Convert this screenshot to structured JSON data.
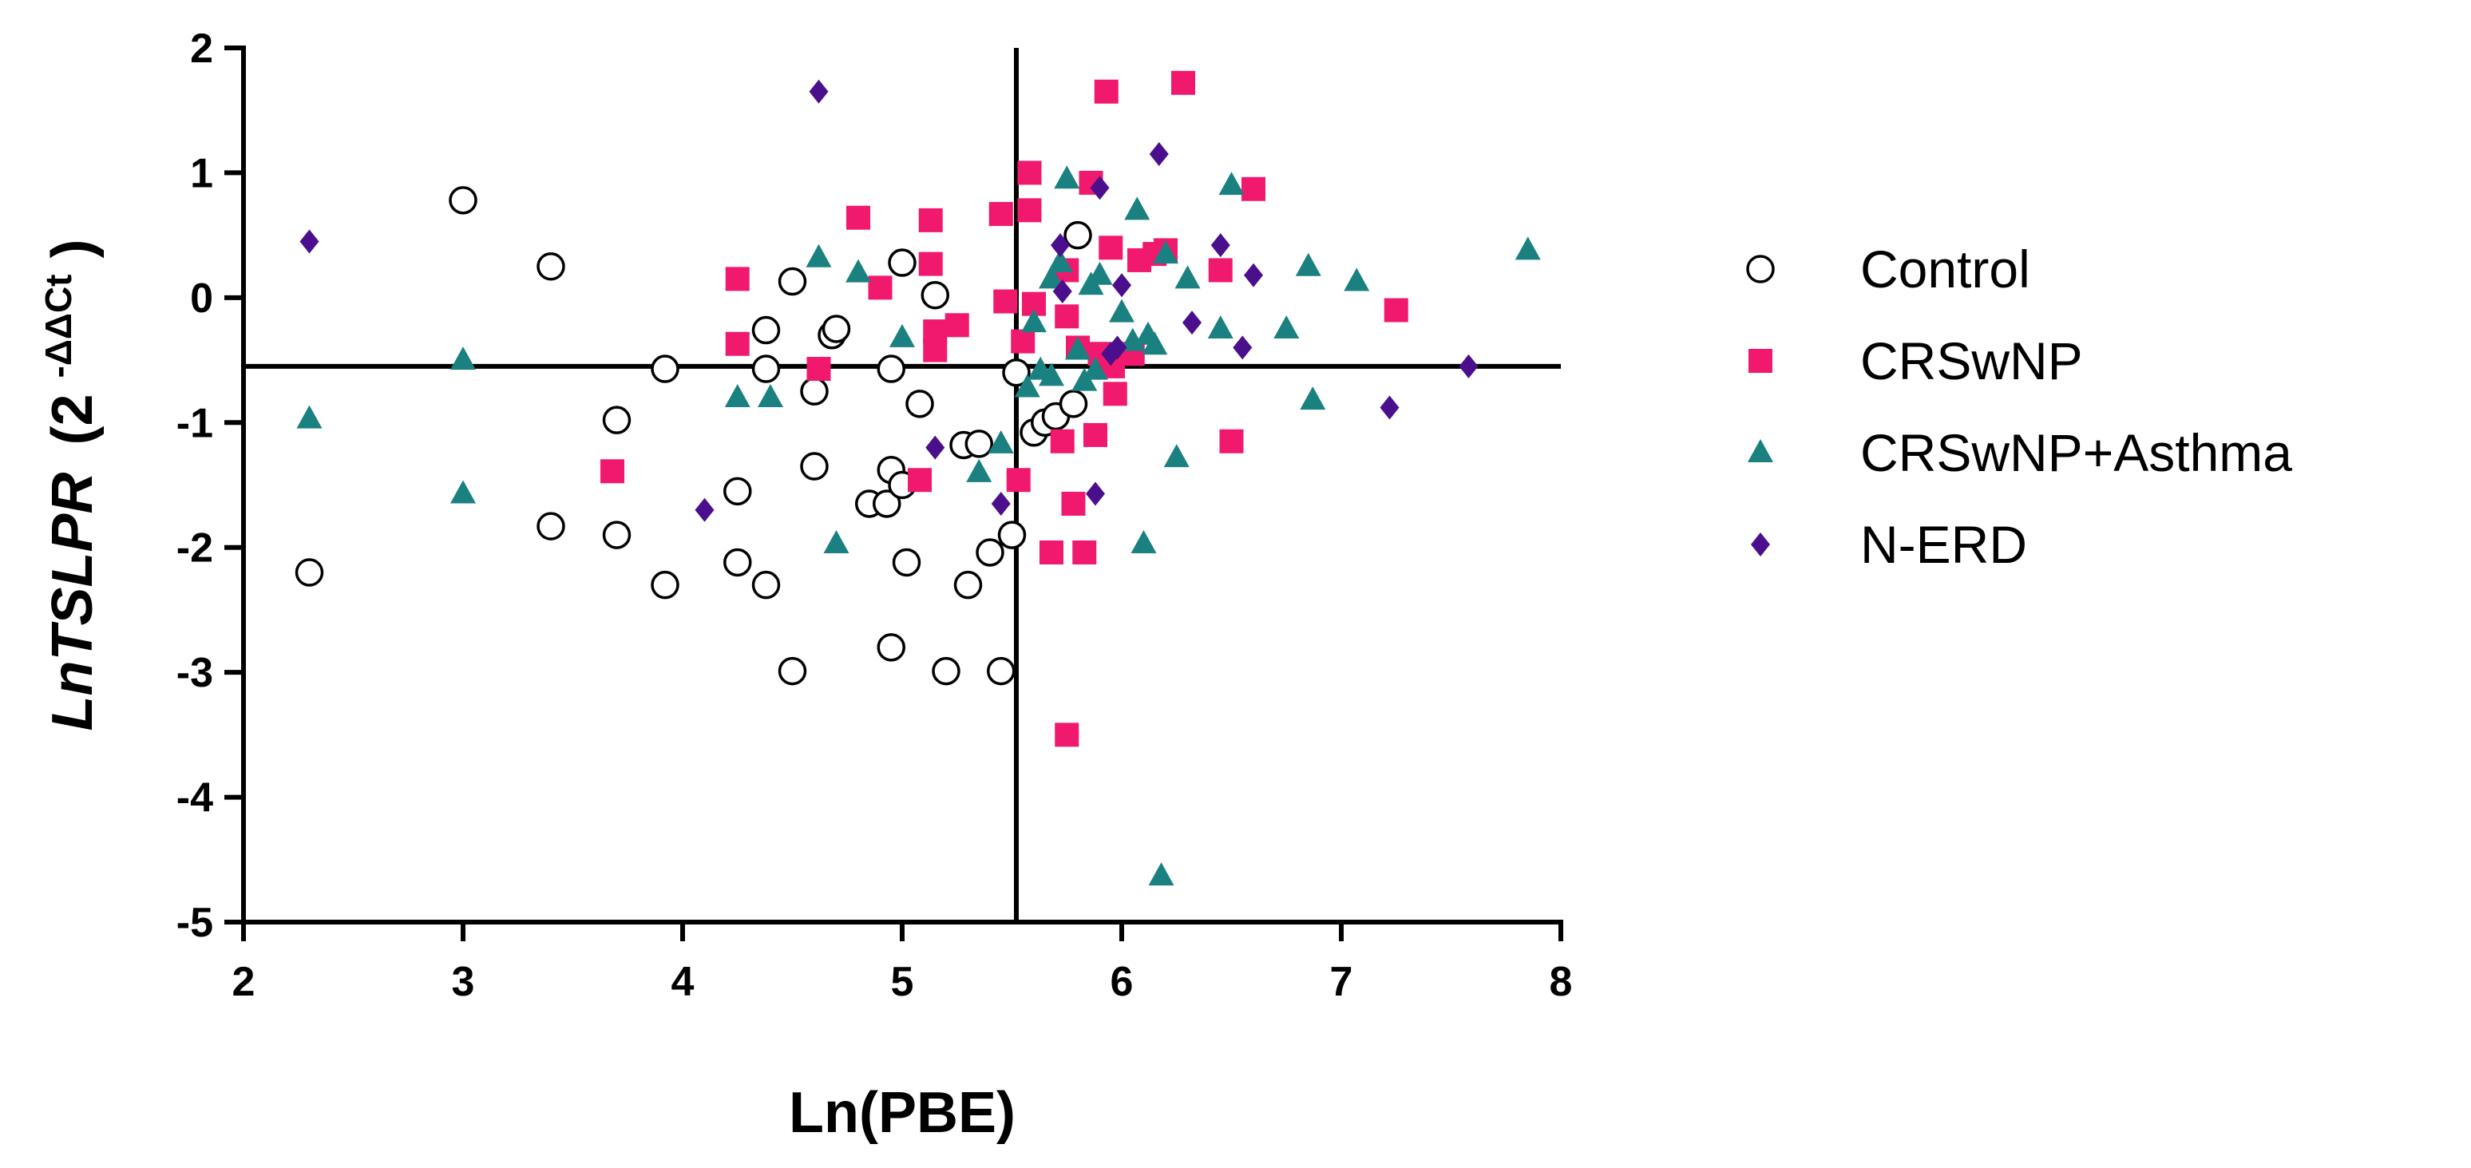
{
  "chart_data": {
    "type": "scatter",
    "xlabel": "Ln(PBE)",
    "ylabel_main": "LnTSLPR",
    "ylabel_open": "(2",
    "ylabel_sup": "-ΔΔCt",
    "ylabel_close": ")",
    "xlim": [
      2,
      8
    ],
    "ylim": [
      -5,
      2
    ],
    "xticks": [
      "2",
      "3",
      "4",
      "5",
      "6",
      "7",
      "8"
    ],
    "yticks": [
      "2",
      "1",
      "0",
      "-1",
      "-2",
      "-3",
      "-4",
      "-5"
    ],
    "ref_lines": {
      "x": 5.52,
      "y": -0.55
    },
    "legend_position": "right",
    "series": [
      {
        "name": "Control",
        "marker": "circle-open",
        "color": "#000000",
        "points": [
          [
            2.3,
            -2.2
          ],
          [
            3.0,
            0.78
          ],
          [
            3.4,
            0.25
          ],
          [
            3.4,
            -1.83
          ],
          [
            3.7,
            -0.98
          ],
          [
            3.7,
            -1.9
          ],
          [
            3.92,
            -0.57
          ],
          [
            3.92,
            -2.3
          ],
          [
            4.25,
            -1.55
          ],
          [
            4.25,
            -2.12
          ],
          [
            4.38,
            -0.26
          ],
          [
            4.38,
            -0.57
          ],
          [
            4.38,
            -2.3
          ],
          [
            4.5,
            0.13
          ],
          [
            4.5,
            -2.99
          ],
          [
            4.6,
            -0.75
          ],
          [
            4.6,
            -1.35
          ],
          [
            4.68,
            -0.3
          ],
          [
            4.7,
            -0.25
          ],
          [
            4.85,
            -1.65
          ],
          [
            4.93,
            -1.65
          ],
          [
            4.95,
            -0.57
          ],
          [
            4.95,
            -1.38
          ],
          [
            4.95,
            -2.8
          ],
          [
            5.0,
            0.28
          ],
          [
            5.0,
            -1.5
          ],
          [
            5.02,
            -2.12
          ],
          [
            5.08,
            -0.85
          ],
          [
            5.15,
            0.02
          ],
          [
            5.2,
            -2.99
          ],
          [
            5.28,
            -1.18
          ],
          [
            5.3,
            -2.3
          ],
          [
            5.35,
            -1.17
          ],
          [
            5.4,
            -2.04
          ],
          [
            5.45,
            -2.99
          ],
          [
            5.5,
            -1.9
          ],
          [
            5.52,
            -0.6
          ],
          [
            5.6,
            -1.08
          ],
          [
            5.65,
            -1.0
          ],
          [
            5.7,
            -0.95
          ],
          [
            5.78,
            -0.85
          ],
          [
            5.8,
            0.5
          ]
        ]
      },
      {
        "name": "CRSwNP",
        "marker": "square",
        "color": "#F0196E",
        "points": [
          [
            3.68,
            -1.39
          ],
          [
            4.25,
            0.15
          ],
          [
            4.25,
            -0.37
          ],
          [
            4.62,
            -0.57
          ],
          [
            4.8,
            0.64
          ],
          [
            4.9,
            0.08
          ],
          [
            5.08,
            -1.46
          ],
          [
            5.13,
            0.62
          ],
          [
            5.13,
            0.27
          ],
          [
            5.15,
            -0.27
          ],
          [
            5.15,
            -0.42
          ],
          [
            5.25,
            -0.22
          ],
          [
            5.45,
            0.67
          ],
          [
            5.47,
            -0.03
          ],
          [
            5.53,
            -1.46
          ],
          [
            5.55,
            -0.35
          ],
          [
            5.58,
            1.0
          ],
          [
            5.58,
            0.7
          ],
          [
            5.6,
            -0.05
          ],
          [
            5.68,
            -2.04
          ],
          [
            5.73,
            -1.15
          ],
          [
            5.75,
            0.22
          ],
          [
            5.75,
            -0.15
          ],
          [
            5.75,
            -3.5
          ],
          [
            5.78,
            -1.65
          ],
          [
            5.8,
            -0.4
          ],
          [
            5.83,
            -2.04
          ],
          [
            5.86,
            0.92
          ],
          [
            5.88,
            -1.1
          ],
          [
            5.9,
            -0.45
          ],
          [
            5.93,
            1.65
          ],
          [
            5.95,
            0.4
          ],
          [
            5.96,
            -0.55
          ],
          [
            5.97,
            -0.77
          ],
          [
            6.05,
            -0.45
          ],
          [
            6.08,
            0.3
          ],
          [
            6.15,
            0.35
          ],
          [
            6.2,
            0.38
          ],
          [
            6.28,
            1.72
          ],
          [
            6.45,
            0.22
          ],
          [
            6.5,
            -1.15
          ],
          [
            6.6,
            0.87
          ],
          [
            7.25,
            -0.1
          ]
        ]
      },
      {
        "name": "CRSwNP+Asthma",
        "marker": "triangle",
        "color": "#1B8080",
        "points": [
          [
            2.3,
            -0.97
          ],
          [
            3.0,
            -0.5
          ],
          [
            3.0,
            -1.57
          ],
          [
            4.25,
            -0.8
          ],
          [
            4.4,
            -0.8
          ],
          [
            4.62,
            0.32
          ],
          [
            4.7,
            -1.97
          ],
          [
            4.8,
            0.2
          ],
          [
            5.0,
            -0.32
          ],
          [
            5.35,
            -1.4
          ],
          [
            5.45,
            -1.17
          ],
          [
            5.57,
            -0.72
          ],
          [
            5.6,
            -0.2
          ],
          [
            5.63,
            -0.58
          ],
          [
            5.68,
            0.15
          ],
          [
            5.68,
            -0.63
          ],
          [
            5.72,
            0.28
          ],
          [
            5.75,
            0.95
          ],
          [
            5.8,
            -0.42
          ],
          [
            5.83,
            -0.67
          ],
          [
            5.86,
            0.1
          ],
          [
            5.88,
            -0.58
          ],
          [
            5.9,
            0.18
          ],
          [
            6.0,
            -0.12
          ],
          [
            6.05,
            -0.35
          ],
          [
            6.07,
            0.7
          ],
          [
            6.1,
            -1.97
          ],
          [
            6.12,
            -0.3
          ],
          [
            6.15,
            -0.38
          ],
          [
            6.18,
            -4.63
          ],
          [
            6.2,
            0.35
          ],
          [
            6.25,
            -1.28
          ],
          [
            6.3,
            0.15
          ],
          [
            6.45,
            -0.25
          ],
          [
            6.5,
            0.9
          ],
          [
            6.75,
            -0.25
          ],
          [
            6.85,
            0.25
          ],
          [
            6.87,
            -0.82
          ],
          [
            7.07,
            0.13
          ],
          [
            7.85,
            0.38
          ]
        ]
      },
      {
        "name": "N-ERD",
        "marker": "diamond",
        "color": "#4B0E8C",
        "points": [
          [
            2.3,
            0.45
          ],
          [
            4.1,
            -1.7
          ],
          [
            4.62,
            1.65
          ],
          [
            5.15,
            -1.2
          ],
          [
            5.45,
            -1.65
          ],
          [
            5.72,
            0.42
          ],
          [
            5.73,
            0.05
          ],
          [
            5.88,
            -1.57
          ],
          [
            5.9,
            0.88
          ],
          [
            5.95,
            -0.45
          ],
          [
            5.98,
            -0.4
          ],
          [
            6.0,
            0.1
          ],
          [
            6.17,
            1.15
          ],
          [
            6.32,
            -0.2
          ],
          [
            6.45,
            0.42
          ],
          [
            6.55,
            -0.4
          ],
          [
            6.6,
            0.18
          ],
          [
            7.22,
            -0.88
          ],
          [
            7.58,
            -0.55
          ]
        ]
      }
    ]
  }
}
